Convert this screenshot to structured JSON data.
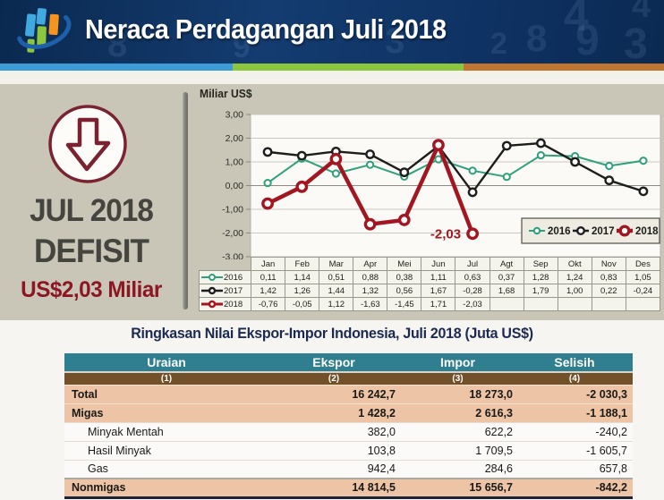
{
  "header": {
    "title": "Neraca Perdagangan Juli 2018",
    "logo_name": "bps-logo",
    "watermark_digits": [
      "4",
      "8",
      "9",
      "3",
      "2",
      "4",
      "8",
      "9",
      "3"
    ]
  },
  "summary_panel": {
    "month_label": "JUL 2018",
    "status_label": "DEFISIT",
    "value_label": "US$2,03 Miliar",
    "icon": "down-arrow-icon",
    "accent_color": "#8c1722"
  },
  "chart_data": {
    "type": "line",
    "title": "Miliar US$",
    "ylabel": "Miliar US$",
    "ylim": [
      -3,
      3
    ],
    "yticks": [
      "3,00",
      "2,00",
      "1,00",
      "0,00",
      "-1,00",
      "-2,00",
      "-3,00"
    ],
    "grid": true,
    "legend_position": "bottom-right",
    "categories": [
      "Jan",
      "Feb",
      "Mar",
      "Apr",
      "Mei",
      "Jun",
      "Jul",
      "Agt",
      "Sep",
      "Okt",
      "Nov",
      "Des"
    ],
    "series": [
      {
        "name": "2016",
        "color": "#2fa07c",
        "values": [
          0.11,
          1.14,
          0.51,
          0.88,
          0.38,
          1.11,
          0.63,
          0.37,
          1.28,
          1.24,
          0.83,
          1.05
        ],
        "labels": [
          "0,11",
          "1,14",
          "0,51",
          "0,88",
          "0,38",
          "1,11",
          "0,63",
          "0,37",
          "1,28",
          "1,24",
          "0,83",
          "1,05"
        ]
      },
      {
        "name": "2017",
        "color": "#1d1d1b",
        "values": [
          1.42,
          1.26,
          1.44,
          1.32,
          0.56,
          1.67,
          -0.28,
          1.68,
          1.79,
          1.0,
          0.22,
          -0.24
        ],
        "labels": [
          "1,42",
          "1,26",
          "1,44",
          "1,32",
          "0,56",
          "1,67",
          "-0,28",
          "1,68",
          "1,79",
          "1,00",
          "0,22",
          "-0,24"
        ]
      },
      {
        "name": "2018",
        "color": "#a31621",
        "values": [
          -0.76,
          -0.05,
          1.12,
          -1.63,
          -1.45,
          1.71,
          -2.03
        ],
        "labels": [
          "-0,76",
          "-0,05",
          "1,12",
          "-1,63",
          "-1,45",
          "1,71",
          "-2,03"
        ]
      }
    ],
    "annotation": {
      "text": "-2,03",
      "series": "2018",
      "category": "Jul"
    }
  },
  "export_table": {
    "title": "Ringkasan Nilai Ekspor-Impor Indonesia, Juli 2018 (Juta US$)",
    "columns": [
      "Uraian",
      "Ekspor",
      "Impor",
      "Selisih"
    ],
    "column_numbers": [
      "(1)",
      "(2)",
      "(3)",
      "(4)"
    ],
    "rows": [
      {
        "label": "Total",
        "ekspor": "16 242,7",
        "impor": "18 273,0",
        "selisih": "-2 030,3",
        "emphasis": true,
        "indent": false
      },
      {
        "label": "Migas",
        "ekspor": "1 428,2",
        "impor": "2 616,3",
        "selisih": "-1 188,1",
        "emphasis": true,
        "indent": false
      },
      {
        "label": "Minyak Mentah",
        "ekspor": "382,0",
        "impor": "622,2",
        "selisih": "-240,2",
        "emphasis": false,
        "indent": true
      },
      {
        "label": "Hasil Minyak",
        "ekspor": "103,8",
        "impor": "1 709,5",
        "selisih": "-1 605,7",
        "emphasis": false,
        "indent": true
      },
      {
        "label": "Gas",
        "ekspor": "942,4",
        "impor": "284,6",
        "selisih": "657,8",
        "emphasis": false,
        "indent": true
      },
      {
        "label": "Nonmigas",
        "ekspor": "14 814,5",
        "impor": "15 656,7",
        "selisih": "-842,2",
        "emphasis": true,
        "indent": false
      }
    ]
  }
}
